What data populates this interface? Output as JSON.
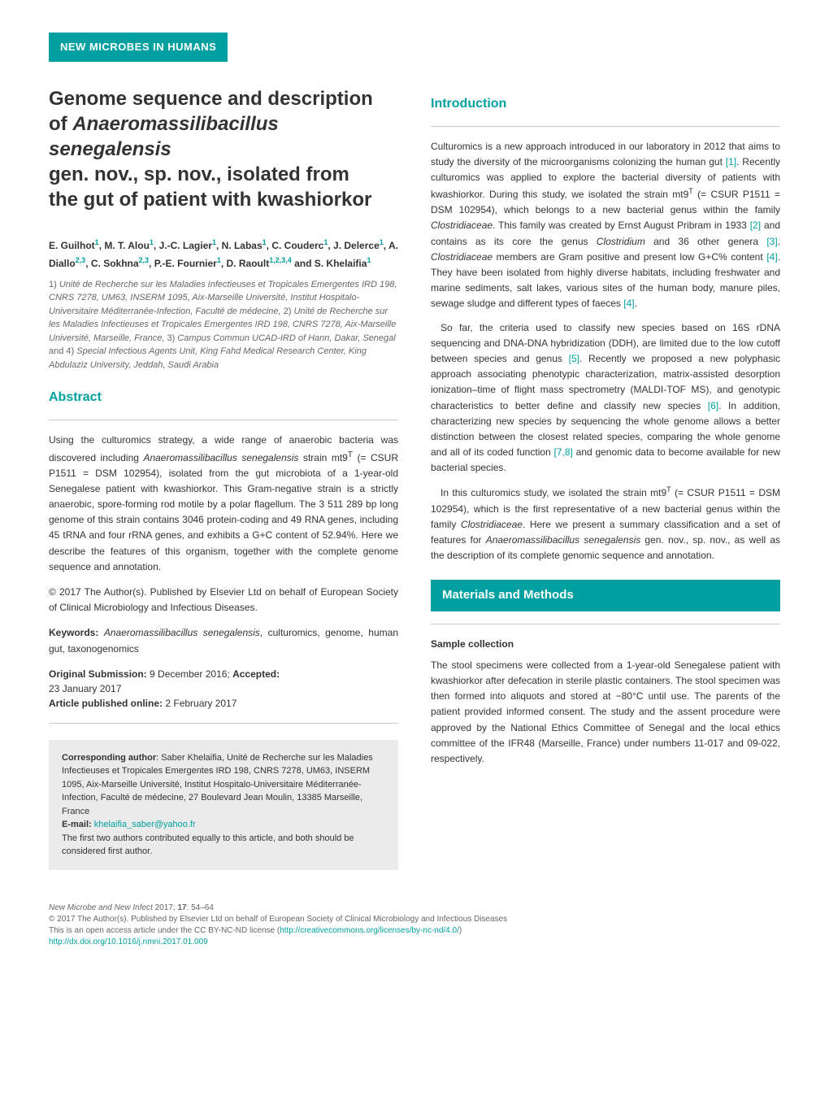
{
  "header": {
    "section_label": "NEW MICROBES IN HUMANS"
  },
  "article": {
    "title_line1": "Genome sequence and description",
    "title_line2": "of ",
    "title_species": "Anaeromassilibacillus senegalensis",
    "title_line3": "gen. nov., sp. nov., isolated from",
    "title_line4": "the gut of patient with kwashiorkor"
  },
  "authors": {
    "list": "E. Guilhot¹, M. T. Alou¹, J.-C. Lagier¹, N. Labas¹, C. Couderc¹, J. Delerce¹, A. Diallo²,³, C. Sokhna²,³, P.-E. Fournier¹, D. Raoult¹,²,³,⁴ and S. Khelaifia¹"
  },
  "affiliations": {
    "text": "1) Unité de Recherche sur les Maladies Infectieuses et Tropicales Emergentes IRD 198, CNRS 7278, UM63, INSERM 1095, Aix-Marseille Université, Institut Hospitalo-Universitaire Méditerranée-Infection, Faculté de médecine, 2) Unité de Recherche sur les Maladies Infectieuses et Tropicales Emergentes IRD 198, CNRS 7278, Aix-Marseille Université, Marseille, France, 3) Campus Commun UCAD-IRD of Hann, Dakar, Senegal and 4) Special Infectious Agents Unit, King Fahd Medical Research Center, King Abdulaziz University, Jeddah, Saudi Arabia"
  },
  "abstract": {
    "title": "Abstract",
    "p1": "Using the culturomics strategy, a wide range of anaerobic bacteria was discovered including Anaeromassilibacillus senegalensis strain mt9ᵀ (= CSUR P1511 = DSM 102954), isolated from the gut microbiota of a 1-year-old Senegalese patient with kwashiorkor. This Gram-negative strain is a strictly anaerobic, spore-forming rod motile by a polar flagellum. The 3 511 289 bp long genome of this strain contains 3046 protein-coding and 49 RNA genes, including 45 tRNA and four rRNA genes, and exhibits a G+C content of 52.94%. Here we describe the features of this organism, together with the complete genome sequence and annotation.",
    "p2": "© 2017 The Author(s). Published by Elsevier Ltd on behalf of European Society of Clinical Microbiology and Infectious Diseases."
  },
  "keywords": {
    "label": "Keywords:",
    "text": " Anaeromassilibacillus senegalensis, culturomics, genome, human gut, taxonogenomics"
  },
  "submission": {
    "original_label": "Original Submission:",
    "original_date": " 9 December 2016; ",
    "accepted_label": "Accepted:",
    "accepted_date": "23 January 2017",
    "published_label": "Article published online:",
    "published_date": " 2 February 2017"
  },
  "corresponding": {
    "label": "Corresponding author",
    "text": ": Saber Khelaifia, Unité de Recherche sur les Maladies Infectieuses et Tropicales Emergentes IRD 198, CNRS 7278, UM63, INSERM 1095, Aix-Marseille Université, Institut Hospitalo-Universitaire Méditerranée-Infection, Faculté de médecine, 27 Boulevard Jean Moulin, 13385 Marseille, France",
    "email_label": "E-mail: ",
    "email": "khelaifia_saber@yahoo.fr",
    "note": "The first two authors contributed equally to this article, and both should be considered first author."
  },
  "introduction": {
    "title": "Introduction",
    "p1_a": "Culturomics is a new approach introduced in our laboratory in 2012 that aims to study the diversity of the microorganisms colonizing the human gut ",
    "ref1": "[1]",
    "p1_b": ". Recently culturomics was applied to explore the bacterial diversity of patients with kwashiorkor. During this study, we isolated the strain mt9ᵀ (= CSUR P1511 = DSM 102954), which belongs to a new bacterial genus within the family Clostridiaceae. This family was created by Ernst August Pribram in 1933 ",
    "ref2": "[2]",
    "p1_c": " and contains as its core the genus Clostridium and 36 other genera ",
    "ref3": "[3]",
    "p1_d": ". Clostridiaceae members are Gram positive and present low G+C% content ",
    "ref4": "[4]",
    "p1_e": ". They have been isolated from highly diverse habitats, including freshwater and marine sediments, salt lakes, various sites of the human body, manure piles, sewage sludge and different types of faeces ",
    "ref4b": "[4]",
    "p1_f": ".",
    "p2_a": "So far, the criteria used to classify new species based on 16S rDNA sequencing and DNA-DNA hybridization (DDH), are limited due to the low cutoff between species and genus ",
    "ref5": "[5]",
    "p2_b": ". Recently we proposed a new polyphasic approach associating phenotypic characterization, matrix-assisted desorption ionization–time of flight mass spectrometry (MALDI-TOF MS), and genotypic characteristics to better define and classify new species ",
    "ref6": "[6]",
    "p2_c": ". In addition, characterizing new species by sequencing the whole genome allows a better distinction between the closest related species, comparing the whole genome and all of its coded function ",
    "ref78": "[7,8]",
    "p2_d": " and genomic data to become available for new bacterial species.",
    "p3": "In this culturomics study, we isolated the strain mt9ᵀ (= CSUR P1511 = DSM 102954), which is the first representative of a new bacterial genus within the family Clostridiaceae. Here we present a summary classification and a set of features for Anaeromassilibacillus senegalensis gen. nov., sp. nov., as well as the description of its complete genomic sequence and annotation."
  },
  "methods": {
    "title": "Materials and Methods",
    "sample_title": "Sample collection",
    "sample_text": "The stool specimens were collected from a 1-year-old Senegalese patient with kwashiorkor after defecation in sterile plastic containers. The stool specimen was then formed into aliquots and stored at −80°C until use. The parents of the patient provided informed consent. The study and the assent procedure were approved by the National Ethics Committee of Senegal and the local ethics committee of the IFR48 (Marseille, France) under numbers 11-017 and 09-022, respectively."
  },
  "footer": {
    "citation": "New Microbe and New Infect 2017; 17: 54–64",
    "copyright": "© 2017 The Author(s). Published by Elsevier Ltd on behalf of European Society of Clinical Microbiology and Infectious Diseases",
    "license_text": "This is an open access article under the CC BY-NC-ND license (",
    "license_url": "http://creativecommons.org/licenses/by-nc-nd/4.0/",
    "license_close": ")",
    "doi": "http://dx.doi.org/10.1016/j.nmni.2017.01.009"
  },
  "colors": {
    "teal": "#00a0a0",
    "text": "#333333",
    "gray": "#666666",
    "lightgray": "#ebebeb",
    "divider": "#cccccc",
    "background": "#ffffff"
  },
  "typography": {
    "body_fontsize": 12,
    "title_fontsize": 24,
    "subsection_fontsize": 16,
    "footer_fontsize": 10,
    "authors_fontsize": 12,
    "affiliations_fontsize": 11
  }
}
